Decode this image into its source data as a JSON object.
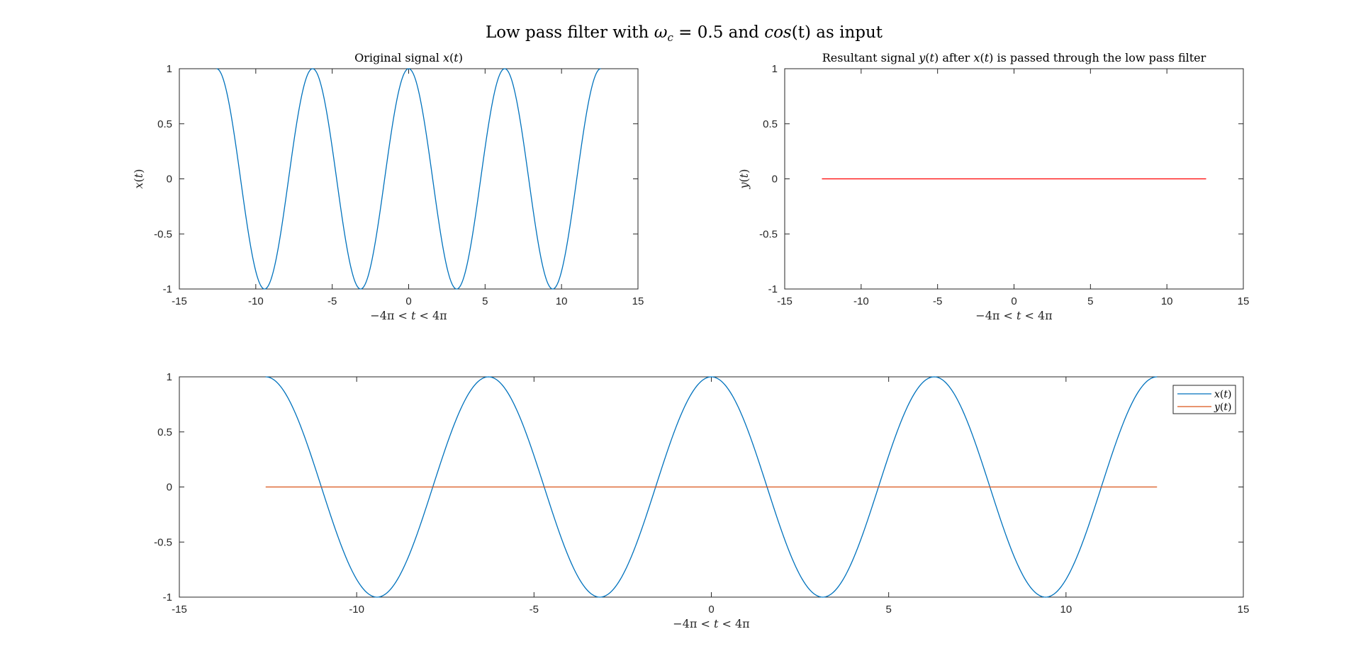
{
  "figure_title": "Low pass filter with ωc = 0.5 and cos(t) as input",
  "figure_title_parts": {
    "pre": "Low pass filter with ",
    "omega": "ω",
    "omega_sub": "c",
    "mid": " = 0.5 and ",
    "cos": "cos",
    "post_fn": "(t)",
    "end": " as input"
  },
  "chart_data": [
    {
      "id": "original",
      "type": "line",
      "title": "Original signal x(t)",
      "xlabel": "−4π < t < 4π",
      "ylabel": "x(t)",
      "xlim": [
        -15,
        15
      ],
      "ylim": [
        -1,
        1
      ],
      "xticks": [
        -15,
        -10,
        -5,
        0,
        5,
        10,
        15
      ],
      "yticks": [
        -1,
        -0.5,
        0,
        0.5,
        1
      ],
      "xtick_labels": [
        "-15",
        "-10",
        "-5",
        "0",
        "5",
        "10",
        "15"
      ],
      "ytick_labels": [
        "-1",
        "-0.5",
        "0",
        "0.5",
        "1"
      ],
      "x_range": [
        -12.566,
        12.566
      ],
      "series": [
        {
          "name": "x(t)",
          "function": "cos(t)",
          "color": "#0072BD"
        }
      ]
    },
    {
      "id": "resultant",
      "type": "line",
      "title": "Resultant signal y(t) after x(t) is passed through the low pass filter",
      "xlabel": "−4π < t < 4π",
      "ylabel": "y(t)",
      "xlim": [
        -15,
        15
      ],
      "ylim": [
        -1,
        1
      ],
      "xticks": [
        -15,
        -10,
        -5,
        0,
        5,
        10,
        15
      ],
      "yticks": [
        -1,
        -0.5,
        0,
        0.5,
        1
      ],
      "xtick_labels": [
        "-15",
        "-10",
        "-5",
        "0",
        "5",
        "10",
        "15"
      ],
      "ytick_labels": [
        "-1",
        "-0.5",
        "0",
        "0.5",
        "1"
      ],
      "x_range": [
        -12.566,
        12.566
      ],
      "series": [
        {
          "name": "y(t)",
          "function": "0",
          "color": "#FF0000"
        }
      ]
    },
    {
      "id": "combined",
      "type": "line",
      "title": "",
      "xlabel": "−4π < t < 4π",
      "ylabel": "",
      "xlim": [
        -15,
        15
      ],
      "ylim": [
        -1,
        1
      ],
      "xticks": [
        -15,
        -10,
        -5,
        0,
        5,
        10,
        15
      ],
      "yticks": [
        -1,
        -0.5,
        0,
        0.5,
        1
      ],
      "xtick_labels": [
        "-15",
        "-10",
        "-5",
        "0",
        "5",
        "10",
        "15"
      ],
      "ytick_labels": [
        "-1",
        "-0.5",
        "0",
        "0.5",
        "1"
      ],
      "x_range": [
        -12.566,
        12.566
      ],
      "legend": "top-right",
      "series": [
        {
          "name": "x(t)",
          "function": "cos(t)",
          "color": "#0072BD"
        },
        {
          "name": "y(t)",
          "function": "0",
          "color": "#D95319"
        }
      ]
    }
  ]
}
